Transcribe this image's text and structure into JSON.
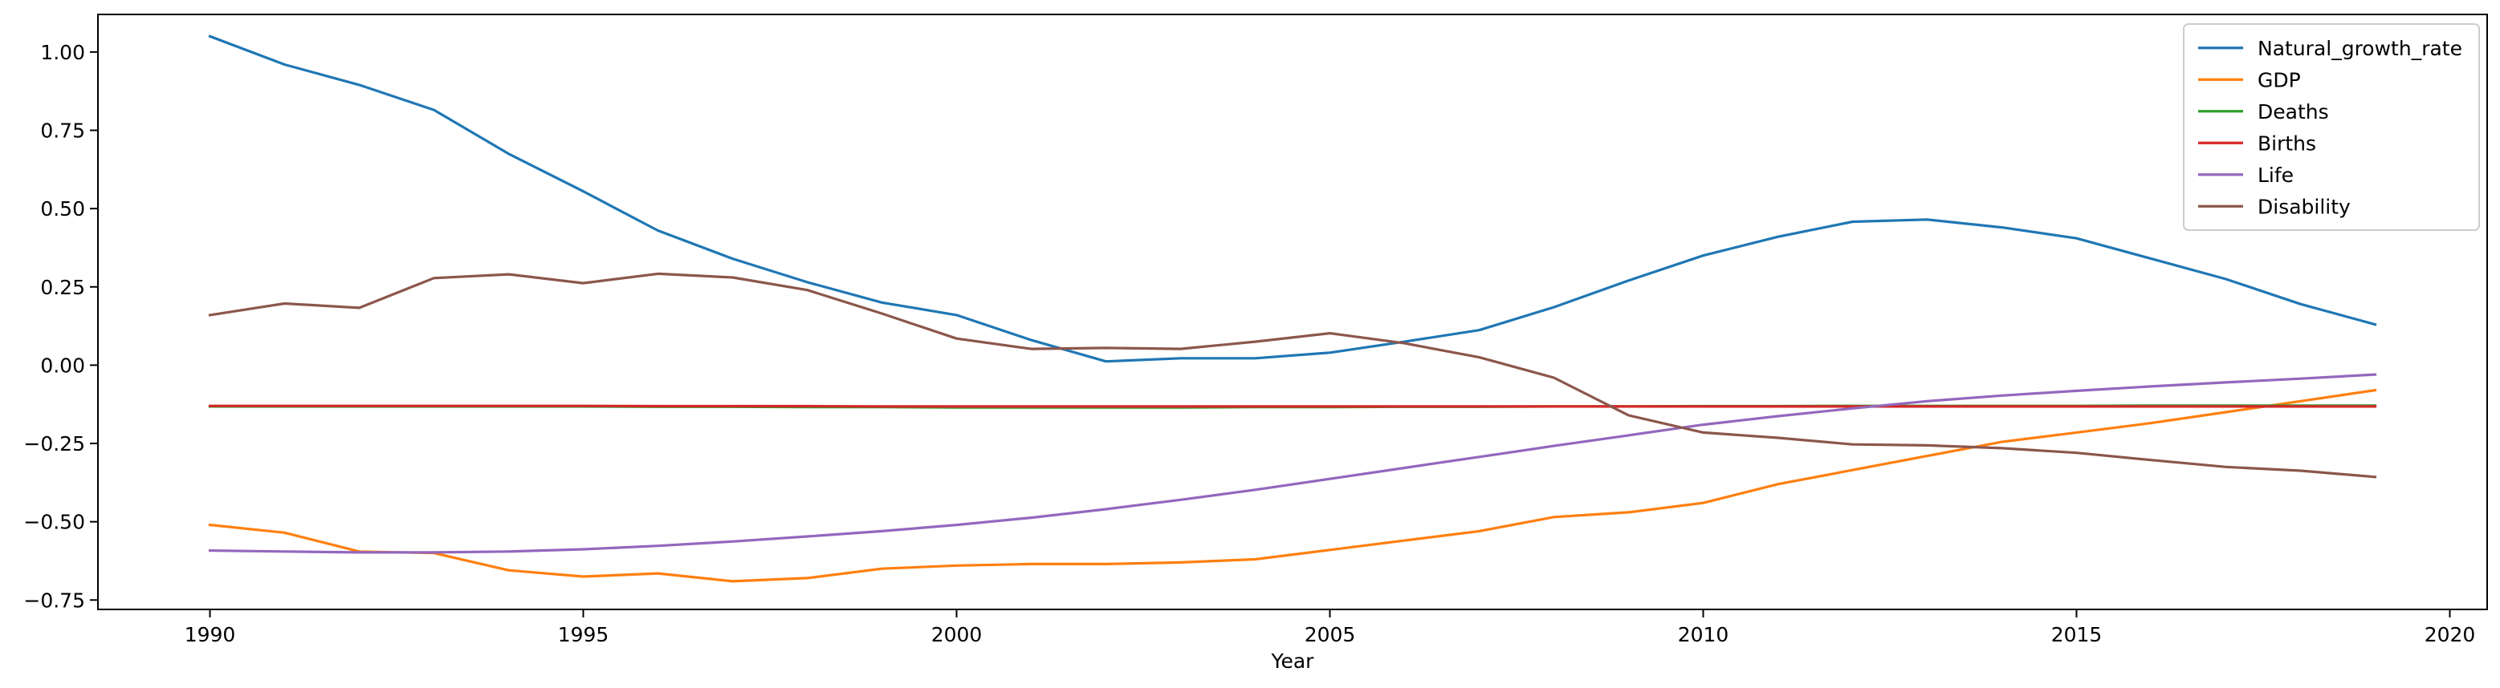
{
  "chart_data": {
    "type": "line",
    "title": "",
    "xlabel": "Year",
    "ylabel": "",
    "xlim": [
      1988.5,
      2020.5
    ],
    "ylim": [
      -0.78,
      1.12
    ],
    "xticks": [
      1990,
      1995,
      2000,
      2005,
      2010,
      2015,
      2020
    ],
    "yticks": [
      -0.75,
      -0.5,
      -0.25,
      0.0,
      0.25,
      0.5,
      0.75,
      1.0
    ],
    "ytick_labels": [
      "−0.75",
      "−0.50",
      "−0.25",
      "0.00",
      "0.25",
      "0.50",
      "0.75",
      "1.00"
    ],
    "grid": false,
    "legend_position": "top-right",
    "x": [
      1990,
      1991,
      1992,
      1993,
      1994,
      1995,
      1996,
      1997,
      1998,
      1999,
      2000,
      2001,
      2002,
      2003,
      2004,
      2005,
      2006,
      2007,
      2008,
      2009,
      2010,
      2011,
      2012,
      2013,
      2014,
      2015,
      2016,
      2017,
      2018,
      2019
    ],
    "series": [
      {
        "name": "Natural_growth_rate",
        "color": "#1f77b4",
        "values": [
          1.05,
          0.96,
          0.895,
          0.815,
          0.675,
          0.555,
          0.43,
          0.34,
          0.265,
          0.2,
          0.16,
          0.08,
          0.012,
          0.022,
          0.022,
          0.04,
          0.075,
          0.112,
          0.185,
          0.27,
          0.35,
          0.41,
          0.458,
          0.465,
          0.44,
          0.405,
          0.34,
          0.275,
          0.195,
          0.13
        ]
      },
      {
        "name": "GDP",
        "color": "#ff7f0e",
        "values": [
          -0.51,
          -0.535,
          -0.595,
          -0.6,
          -0.655,
          -0.675,
          -0.665,
          -0.69,
          -0.68,
          -0.65,
          -0.64,
          -0.635,
          -0.635,
          -0.63,
          -0.62,
          -0.59,
          -0.56,
          -0.53,
          -0.485,
          -0.47,
          -0.44,
          -0.38,
          -0.335,
          -0.29,
          -0.245,
          -0.215,
          -0.185,
          -0.15,
          -0.115,
          -0.08
        ]
      },
      {
        "name": "Deaths",
        "color": "#2ca02c",
        "values": [
          -0.132,
          -0.132,
          -0.132,
          -0.132,
          -0.132,
          -0.132,
          -0.133,
          -0.133,
          -0.134,
          -0.134,
          -0.135,
          -0.135,
          -0.135,
          -0.135,
          -0.134,
          -0.134,
          -0.133,
          -0.133,
          -0.132,
          -0.132,
          -0.131,
          -0.131,
          -0.13,
          -0.13,
          -0.13,
          -0.13,
          -0.129,
          -0.129,
          -0.129,
          -0.129
        ]
      },
      {
        "name": "Births",
        "color": "#d62728",
        "values": [
          -0.13,
          -0.13,
          -0.13,
          -0.13,
          -0.13,
          -0.13,
          -0.131,
          -0.131,
          -0.131,
          -0.132,
          -0.132,
          -0.132,
          -0.132,
          -0.132,
          -0.132,
          -0.132,
          -0.132,
          -0.132,
          -0.132,
          -0.132,
          -0.132,
          -0.132,
          -0.132,
          -0.132,
          -0.132,
          -0.132,
          -0.132,
          -0.132,
          -0.132,
          -0.132
        ]
      },
      {
        "name": "Life",
        "color": "#9467bd",
        "values": [
          -0.592,
          -0.595,
          -0.598,
          -0.598,
          -0.595,
          -0.588,
          -0.577,
          -0.563,
          -0.547,
          -0.53,
          -0.51,
          -0.487,
          -0.46,
          -0.43,
          -0.398,
          -0.363,
          -0.328,
          -0.293,
          -0.258,
          -0.224,
          -0.19,
          -0.163,
          -0.138,
          -0.115,
          -0.097,
          -0.082,
          -0.068,
          -0.055,
          -0.043,
          -0.03
        ]
      },
      {
        "name": "Disability",
        "color": "#8c564b",
        "values": [
          0.16,
          0.197,
          0.183,
          0.278,
          0.29,
          0.262,
          0.292,
          0.28,
          0.24,
          0.165,
          0.085,
          0.052,
          0.055,
          0.052,
          0.075,
          0.102,
          0.07,
          0.025,
          -0.04,
          -0.16,
          -0.215,
          -0.232,
          -0.253,
          -0.256,
          -0.265,
          -0.28,
          -0.303,
          -0.325,
          -0.337,
          -0.357
        ]
      }
    ]
  }
}
